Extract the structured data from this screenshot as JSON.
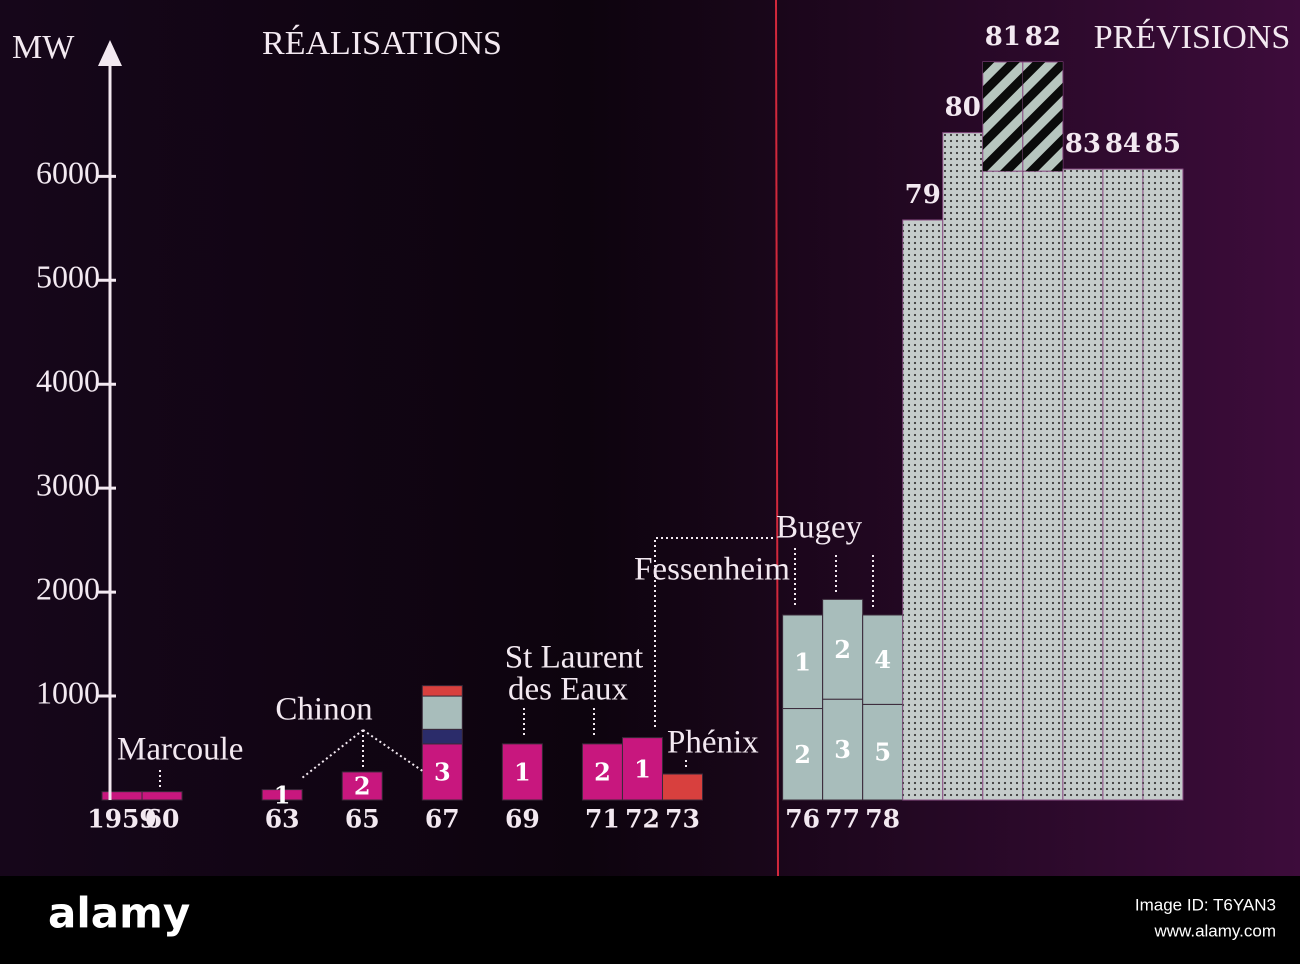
{
  "chart_data": {
    "type": "stacked-timeline-bar",
    "y_label": "MW",
    "titles": [
      "RÉALISATIONS",
      "PRÉVISIONS"
    ],
    "annotations": [
      "Marcoule",
      "Chinon",
      "St Laurent",
      "des Eaux",
      "Fessenheim",
      "Bugey",
      "Phénix"
    ],
    "xlim": [
      1958.7,
      1986.5
    ],
    "xticks": [
      {
        "value": 1959,
        "label": "1959"
      },
      {
        "value": 1960,
        "label": "60"
      },
      {
        "value": 1963,
        "label": "63"
      },
      {
        "value": 1965,
        "label": "65"
      },
      {
        "value": 1967,
        "label": "67"
      },
      {
        "value": 1969,
        "label": "69"
      },
      {
        "value": 1971,
        "label": "71"
      },
      {
        "value": 1972,
        "label": "72"
      },
      {
        "value": 1973,
        "label": "73"
      },
      {
        "value": 1976,
        "label": "76"
      },
      {
        "value": 1977,
        "label": "77"
      },
      {
        "value": 1978,
        "label": "78"
      }
    ],
    "ylim": [
      0,
      7100
    ],
    "yticks": [
      1000,
      2000,
      3000,
      4000,
      5000,
      6000
    ],
    "bars": [
      {
        "x": 1959,
        "segments": [
          {
            "value": 80,
            "color": "#c8177e"
          }
        ]
      },
      {
        "x": 1960,
        "segments": [
          {
            "value": 80,
            "color": "#c8177e"
          }
        ]
      },
      {
        "x": 1963,
        "segments": [
          {
            "value": 100,
            "color": "#c8177e",
            "label": "1"
          }
        ]
      },
      {
        "x": 1965,
        "segments": [
          {
            "value": 270,
            "color": "#c8177e",
            "label": "2"
          }
        ]
      },
      {
        "x": 1967,
        "segments": [
          {
            "value": 540,
            "color": "#c8177e",
            "label": "3"
          },
          {
            "value": 140,
            "color": "#2b2c6a"
          },
          {
            "value": 320,
            "color": "#a8bdbb"
          },
          {
            "value": 100,
            "color": "#d8403e"
          }
        ]
      },
      {
        "x": 1969,
        "segments": [
          {
            "value": 540,
            "color": "#c8177e",
            "label": "1"
          }
        ]
      },
      {
        "x": 1971,
        "segments": [
          {
            "value": 540,
            "color": "#c8177e",
            "label": "2"
          }
        ]
      },
      {
        "x": 1972,
        "segments": [
          {
            "value": 600,
            "color": "#c8177e",
            "label": "1"
          }
        ]
      },
      {
        "x": 1973,
        "segments": [
          {
            "value": 250,
            "color": "#d8403e"
          }
        ]
      },
      {
        "x": 1976,
        "segments": [
          {
            "value": 880,
            "color": "#a8bdbb",
            "label": "2"
          },
          {
            "value": 900,
            "color": "#a8bdbb",
            "label": "1"
          }
        ]
      },
      {
        "x": 1977,
        "segments": [
          {
            "value": 970,
            "color": "#a8bdbb",
            "label": "3"
          },
          {
            "value": 960,
            "color": "#a8bdbb",
            "label": "2"
          }
        ]
      },
      {
        "x": 1978,
        "segments": [
          {
            "value": 920,
            "color": "#a8bdbb",
            "label": "5"
          },
          {
            "value": 860,
            "color": "#a8bdbb",
            "label": "4"
          }
        ]
      },
      {
        "x": 1979,
        "top_label": "79",
        "segments": [
          {
            "value": 5580,
            "color": "#c5cccb",
            "pattern": "dots"
          }
        ]
      },
      {
        "x": 1980,
        "top_label": "80",
        "segments": [
          {
            "value": 6420,
            "color": "#c5cccb",
            "pattern": "dots"
          }
        ]
      },
      {
        "x": 1981,
        "top_label": "81",
        "segments": [
          {
            "value": 6050,
            "color": "#c5cccb",
            "pattern": "dots"
          },
          {
            "value": 1050,
            "color": "#b7c6bf",
            "pattern": "hatch"
          }
        ]
      },
      {
        "x": 1982,
        "top_label": "82",
        "segments": [
          {
            "value": 6050,
            "color": "#c5cccb",
            "pattern": "dots"
          },
          {
            "value": 1050,
            "color": "#b7c6bf",
            "pattern": "hatch"
          }
        ]
      },
      {
        "x": 1983,
        "top_label": "83",
        "segments": [
          {
            "value": 6070,
            "color": "#c5cccb",
            "pattern": "dots"
          }
        ]
      },
      {
        "x": 1984,
        "top_label": "84",
        "segments": [
          {
            "value": 6070,
            "color": "#c5cccb",
            "pattern": "dots"
          }
        ]
      },
      {
        "x": 1985,
        "top_label": "85",
        "segments": [
          {
            "value": 6070,
            "color": "#c5cccb",
            "pattern": "dots"
          }
        ]
      }
    ]
  },
  "footer": {
    "logo": "alamy",
    "image_id": "Image ID: T6YAN3",
    "site": "www.alamy.com"
  }
}
